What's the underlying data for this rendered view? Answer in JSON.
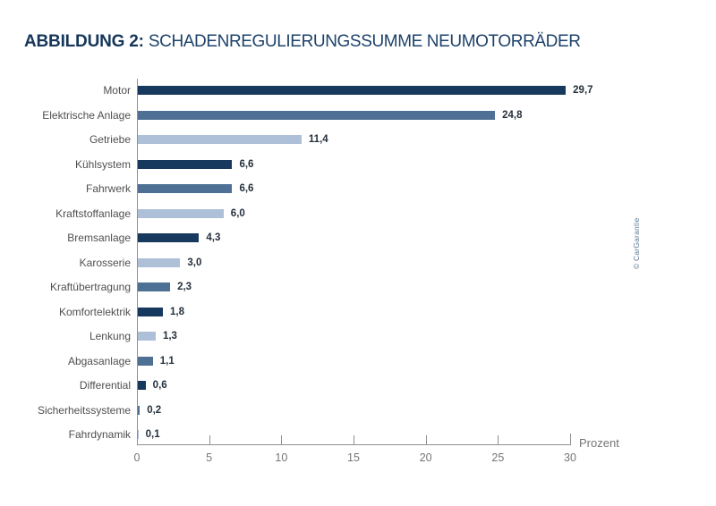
{
  "title": {
    "prefix": "ABBILDUNG 2:",
    "text": "SCHADENREGULIERUNGSSUMME NEUMOTORRÄDER"
  },
  "credit": "© CarGarantie",
  "chart_data": {
    "type": "bar",
    "orientation": "horizontal",
    "title": "ABBILDUNG 2: SCHADENREGULIERUNGSSUMME NEUMOTORRÄDER",
    "categories": [
      "Motor",
      "Elektrische Anlage",
      "Getriebe",
      "Kühlsystem",
      "Fahrwerk",
      "Kraftstoffanlage",
      "Bremsanlage",
      "Karosserie",
      "Kraftübertragung",
      "Komfortelektrik",
      "Lenkung",
      "Abgasanlage",
      "Differential",
      "Sicherheitssysteme",
      "Fahrdynamik"
    ],
    "values": [
      29.7,
      24.8,
      11.4,
      6.6,
      6.6,
      6.0,
      4.3,
      3.0,
      2.3,
      1.8,
      1.3,
      1.1,
      0.6,
      0.2,
      0.1
    ],
    "value_labels": [
      "29,7",
      "24,8",
      "11,4",
      "6,6",
      "6,6",
      "6,0",
      "4,3",
      "3,0",
      "2,3",
      "1,8",
      "1,3",
      "1,1",
      "0,6",
      "0,2",
      "0,1"
    ],
    "bar_color_keys": [
      "dark",
      "medium",
      "light",
      "dark",
      "medium",
      "light",
      "dark",
      "light",
      "medium",
      "dark",
      "light",
      "medium",
      "dark",
      "medium",
      "light"
    ],
    "palette": {
      "dark": "#17395d",
      "medium": "#4d7094",
      "light": "#aebfd8"
    },
    "xlabel": "Prozent",
    "x_ticks": [
      0,
      5,
      10,
      15,
      20,
      25,
      30
    ],
    "xlim": [
      0,
      30
    ],
    "grid": false,
    "legend": false,
    "axis_color": "#8f8f8f"
  }
}
